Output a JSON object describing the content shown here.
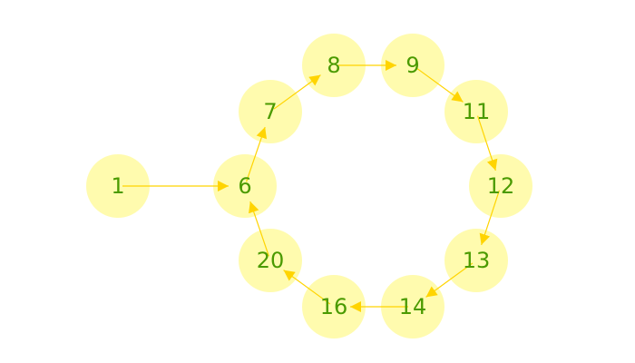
{
  "graph": {
    "directed": true,
    "colors": {
      "node_fill": "#fffaa0",
      "edge": "#ffd400",
      "arrow": "#ffd400",
      "label": "#4a9a00"
    },
    "nodes": [
      {
        "id": "1",
        "label": "1"
      },
      {
        "id": "6",
        "label": "6"
      },
      {
        "id": "7",
        "label": "7"
      },
      {
        "id": "8",
        "label": "8"
      },
      {
        "id": "9",
        "label": "9"
      },
      {
        "id": "11",
        "label": "11"
      },
      {
        "id": "12",
        "label": "12"
      },
      {
        "id": "13",
        "label": "13"
      },
      {
        "id": "14",
        "label": "14"
      },
      {
        "id": "16",
        "label": "16"
      },
      {
        "id": "20",
        "label": "20"
      }
    ],
    "edges": [
      {
        "from": "1",
        "to": "6"
      },
      {
        "from": "6",
        "to": "7"
      },
      {
        "from": "7",
        "to": "8"
      },
      {
        "from": "8",
        "to": "9"
      },
      {
        "from": "9",
        "to": "11"
      },
      {
        "from": "11",
        "to": "12"
      },
      {
        "from": "12",
        "to": "13"
      },
      {
        "from": "13",
        "to": "14"
      },
      {
        "from": "14",
        "to": "16"
      },
      {
        "from": "16",
        "to": "20"
      },
      {
        "from": "20",
        "to": "6"
      }
    ]
  }
}
